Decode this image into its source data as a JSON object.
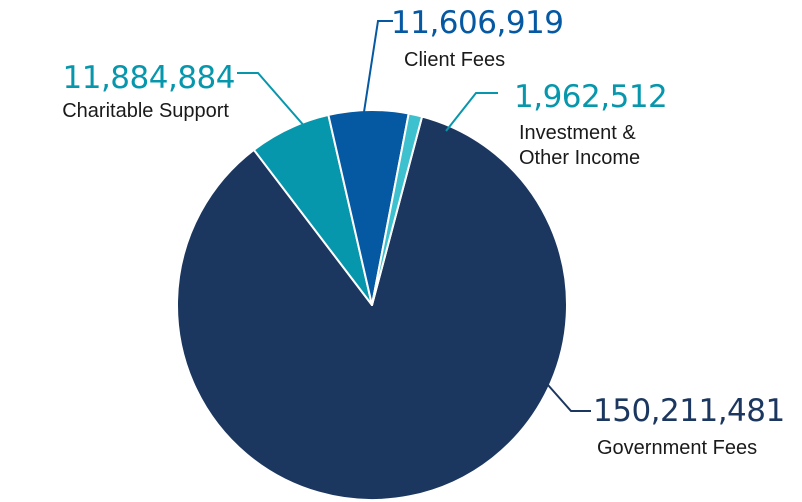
{
  "chart_data": {
    "type": "pie",
    "title": "",
    "start_angle_deg": 14.88,
    "slices": [
      {
        "name": "Government Fees",
        "label_lines": [
          "Government Fees"
        ],
        "value": 150211481,
        "value_label": "150,211,481",
        "color": "#1c375f",
        "label_color": "#1c375f"
      },
      {
        "name": "Charitable Support",
        "label_lines": [
          "Charitable Support"
        ],
        "value": 11884884,
        "value_label": "11,884,884",
        "color": "#0797ad",
        "label_color": "#0797ad"
      },
      {
        "name": "Client Fees",
        "label_lines": [
          "Client Fees"
        ],
        "value": 11606919,
        "value_label": "11,606,919",
        "color": "#0558a2",
        "label_color": "#0558a2"
      },
      {
        "name": "Investment & Other Income",
        "label_lines": [
          "Investment &",
          "Other Income"
        ],
        "value": 1962512,
        "value_label": "1,962,512",
        "color": "#3ec1cf",
        "label_color": "#0797ad"
      }
    ]
  }
}
